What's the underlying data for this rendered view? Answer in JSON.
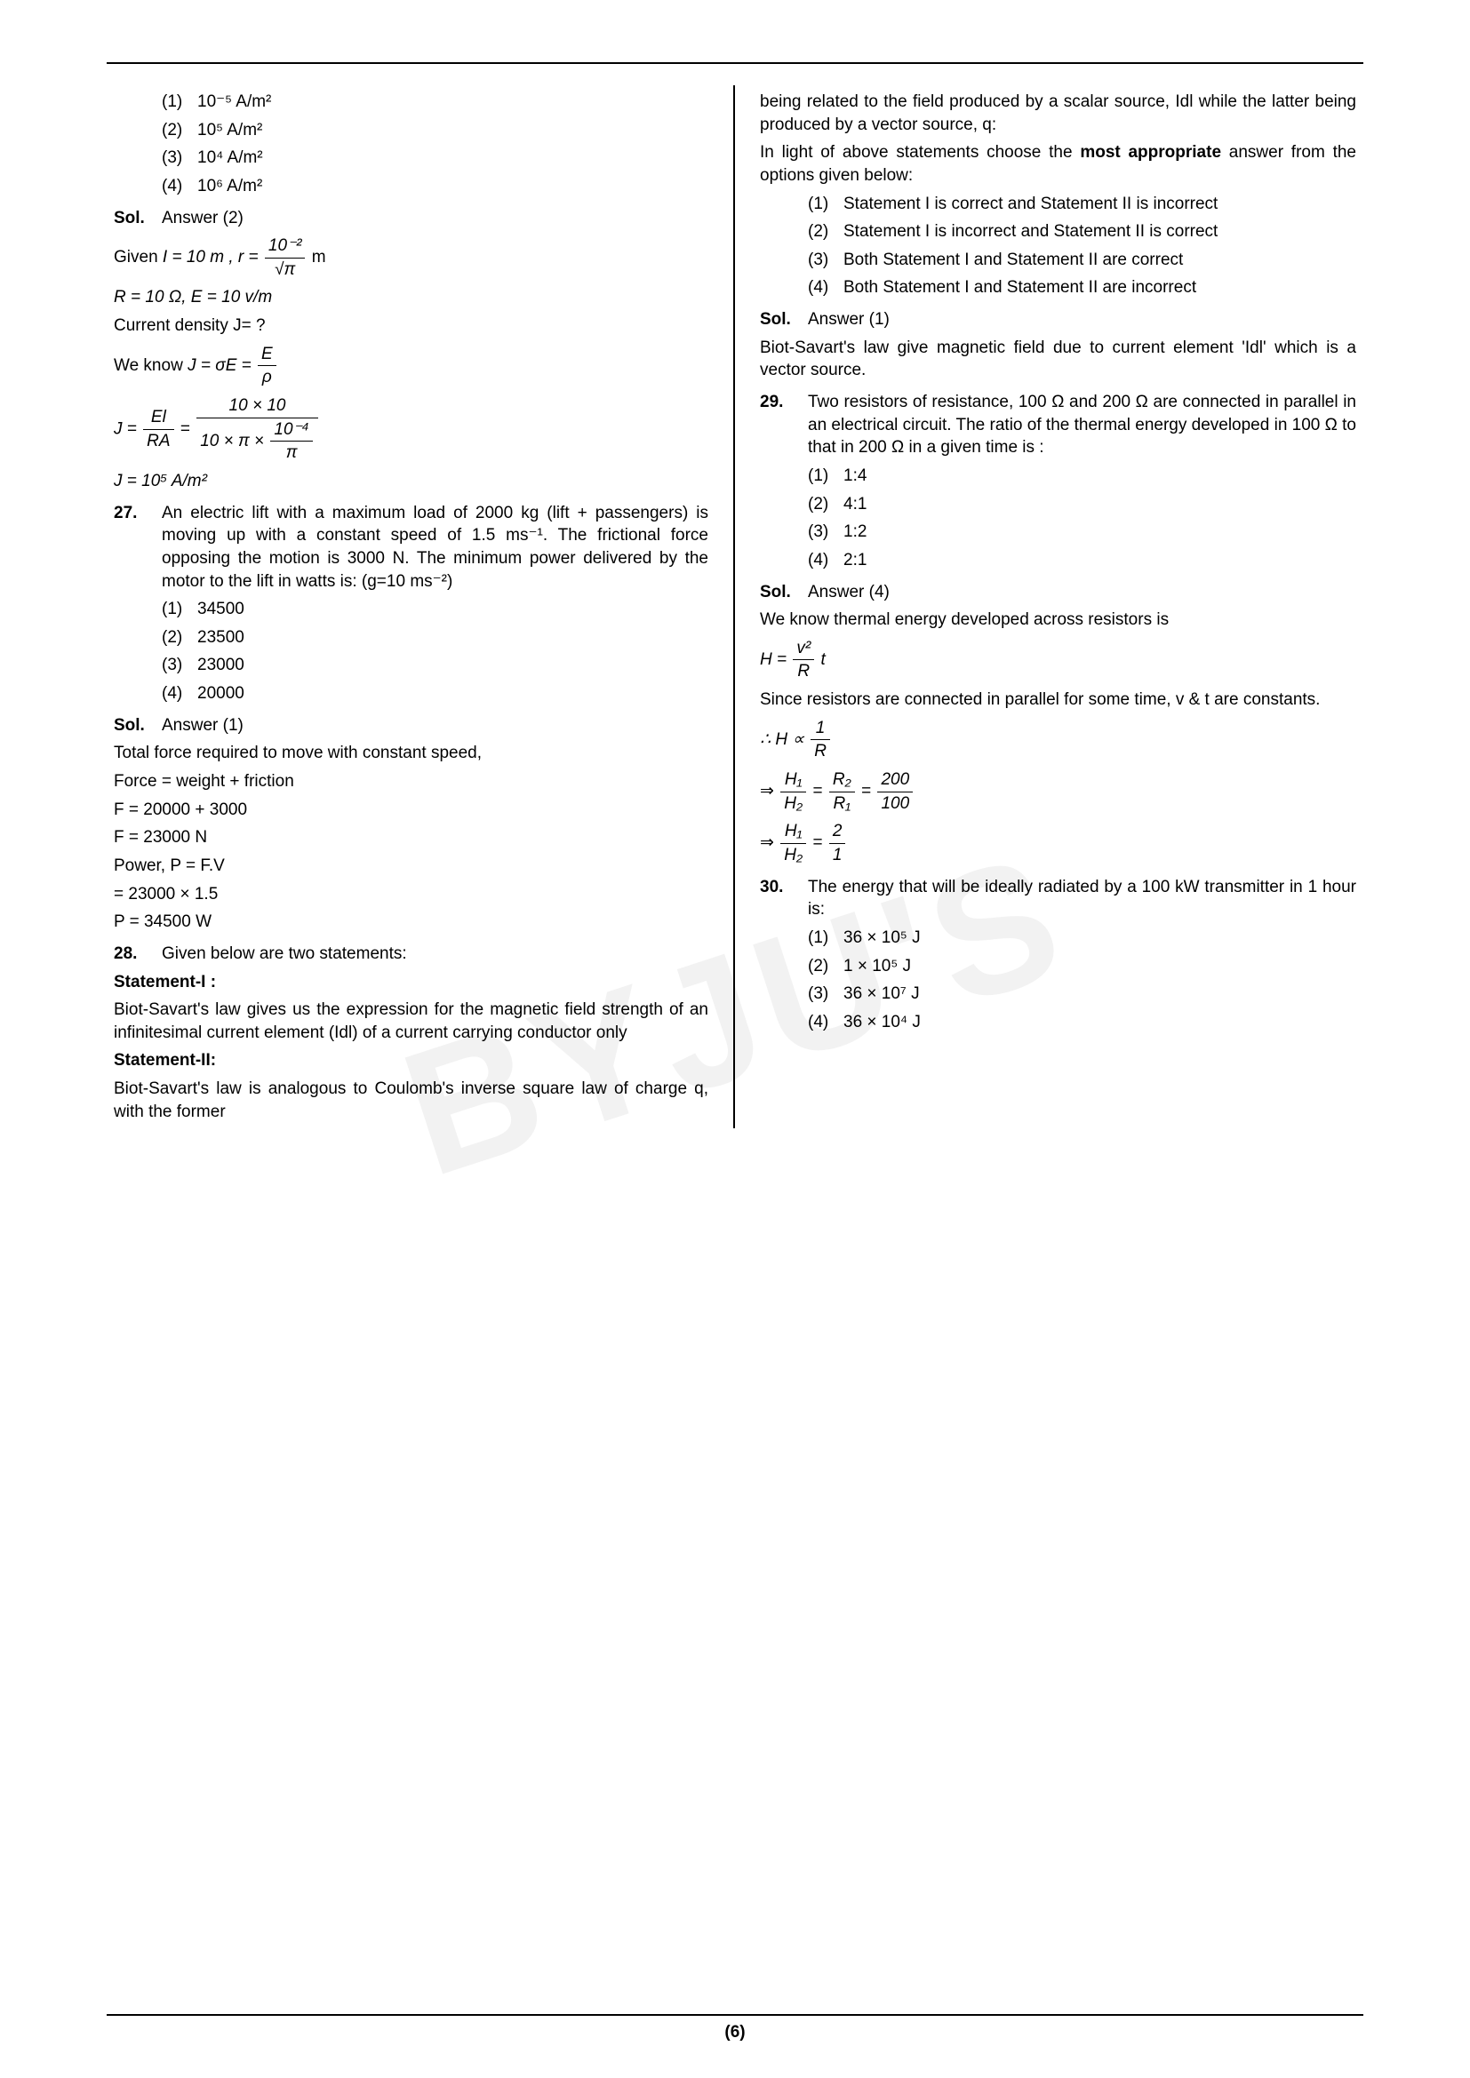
{
  "page_number": "(6)",
  "watermark": "BYJU'S",
  "left": {
    "q26_options": {
      "o1_mark": "(1)",
      "o1": "10⁻⁵ A/m²",
      "o2_mark": "(2)",
      "o2": "10⁵ A/m²",
      "o3_mark": "(3)",
      "o3": "10⁴ A/m²",
      "o4_mark": "(4)",
      "o4": "10⁶ A/m²"
    },
    "q26_sol_label": "Sol.",
    "q26_answer": "Answer (2)",
    "q26_given_prefix": "Given ",
    "q26_given_I": "I = 10 m ,  r =",
    "q26_given_frac_num": "10⁻²",
    "q26_given_frac_den": "√π",
    "q26_given_suffix": " m",
    "q26_line2": "R = 10 Ω, E = 10 v/m",
    "q26_line3": "Current density J= ?",
    "q26_line4_prefix": "We know ",
    "q26_line4_eq": "J = σE = ",
    "q26_line4_frac_num": "E",
    "q26_line4_frac_den": "ρ",
    "q26_line5_lhs": "J = ",
    "q26_line5_frac1_num": "El",
    "q26_line5_frac1_den": "RA",
    "q26_line5_eq": " = ",
    "q26_line5_frac2_num": "10 × 10",
    "q26_line5_frac2_den_a": "10 × π × ",
    "q26_line5_frac2_den_num": "10⁻⁴",
    "q26_line5_frac2_den_den": "π",
    "q26_line6": "J = 10⁵ A/m²",
    "q27_num": "27.",
    "q27_text": "An electric lift with a maximum load of 2000 kg (lift + passengers) is moving up with a constant speed of 1.5 ms⁻¹. The frictional force opposing the motion is 3000 N. The minimum power delivered by the motor to the lift in watts is: (g=10 ms⁻²)",
    "q27_o1_mark": "(1)",
    "q27_o1": "34500",
    "q27_o2_mark": "(2)",
    "q27_o2": "23500",
    "q27_o3_mark": "(3)",
    "q27_o3": "23000",
    "q27_o4_mark": "(4)",
    "q27_o4": "20000",
    "q27_sol_label": "Sol.",
    "q27_answer": "Answer (1)",
    "q27_s1": "Total force required to move with constant speed,",
    "q27_s2": "Force = weight + friction",
    "q27_s3": "F = 20000 + 3000",
    "q27_s4": "F = 23000 N",
    "q27_s5": "Power, P = F.V",
    "q27_s6": "= 23000 × 1.5",
    "q27_s7": "P = 34500 W",
    "q28_num": "28.",
    "q28_text": "Given below are two statements:",
    "q28_st1_label": "Statement-I :",
    "q28_st1": "Biot-Savart's law gives us the expression for the magnetic field strength of an infinitesimal current element (Idl) of a current carrying conductor only",
    "q28_st2_label": "Statement-II:",
    "q28_st2": "Biot-Savart's law is analogous to Coulomb's inverse square law of charge q, with the former"
  },
  "right": {
    "q28_cont": "being related to the field produced by a scalar source, Idl while the latter being produced by a vector source, q:",
    "q28_instr_a": "In light of above statements choose the ",
    "q28_instr_b": "most appropriate",
    "q28_instr_c": " answer from the options given below:",
    "q28_o1_mark": "(1)",
    "q28_o1": "Statement I is correct and Statement II is incorrect",
    "q28_o2_mark": "(2)",
    "q28_o2": "Statement I is incorrect and Statement II is correct",
    "q28_o3_mark": "(3)",
    "q28_o3": "Both Statement I and Statement II are correct",
    "q28_o4_mark": "(4)",
    "q28_o4": "Both Statement I and Statement II are incorrect",
    "q28_sol_label": "Sol.",
    "q28_answer": "Answer (1)",
    "q28_sol_text": "Biot-Savart's law give magnetic field due to current element 'Idl' which is a vector source.",
    "q29_num": "29.",
    "q29_text": "Two resistors of resistance, 100 Ω and 200 Ω are connected in parallel in an electrical circuit. The ratio of the thermal energy developed in 100 Ω to that in 200 Ω in a given time is :",
    "q29_o1_mark": "(1)",
    "q29_o1": "1:4",
    "q29_o2_mark": "(2)",
    "q29_o2": "4:1",
    "q29_o3_mark": "(3)",
    "q29_o3": "1:2",
    "q29_o4_mark": "(4)",
    "q29_o4": "2:1",
    "q29_sol_label": "Sol.",
    "q29_answer": "Answer (4)",
    "q29_s1": "We know thermal energy developed across resistors is",
    "q29_eq1_lhs": "H = ",
    "q29_eq1_num": "v²",
    "q29_eq1_den": "R",
    "q29_eq1_suffix": " t",
    "q29_s2": "Since resistors are connected in parallel for some time, v & t are constants.",
    "q29_eq2_prefix": "∴ H ∝ ",
    "q29_eq2_num": "1",
    "q29_eq2_den": "R",
    "q29_eq3_prefix": "⇒ ",
    "q29_eq3_f1_num": "H₁",
    "q29_eq3_f1_den": "H₂",
    "q29_eq3_mid1": " = ",
    "q29_eq3_f2_num": "R₂",
    "q29_eq3_f2_den": "R₁",
    "q29_eq3_mid2": " = ",
    "q29_eq3_f3_num": "200",
    "q29_eq3_f3_den": "100",
    "q29_eq4_prefix": "⇒ ",
    "q29_eq4_f1_num": "H₁",
    "q29_eq4_f1_den": "H₂",
    "q29_eq4_mid": " = ",
    "q29_eq4_f2_num": "2",
    "q29_eq4_f2_den": "1",
    "q30_num": "30.",
    "q30_text": "The energy that will be ideally radiated by a 100 kW transmitter in 1 hour is:",
    "q30_o1_mark": "(1)",
    "q30_o1": "36 × 10⁵ J",
    "q30_o2_mark": "(2)",
    "q30_o2": "1 × 10⁵ J",
    "q30_o3_mark": "(3)",
    "q30_o3": "36 × 10⁷ J",
    "q30_o4_mark": "(4)",
    "q30_o4": "36 × 10⁴ J"
  }
}
